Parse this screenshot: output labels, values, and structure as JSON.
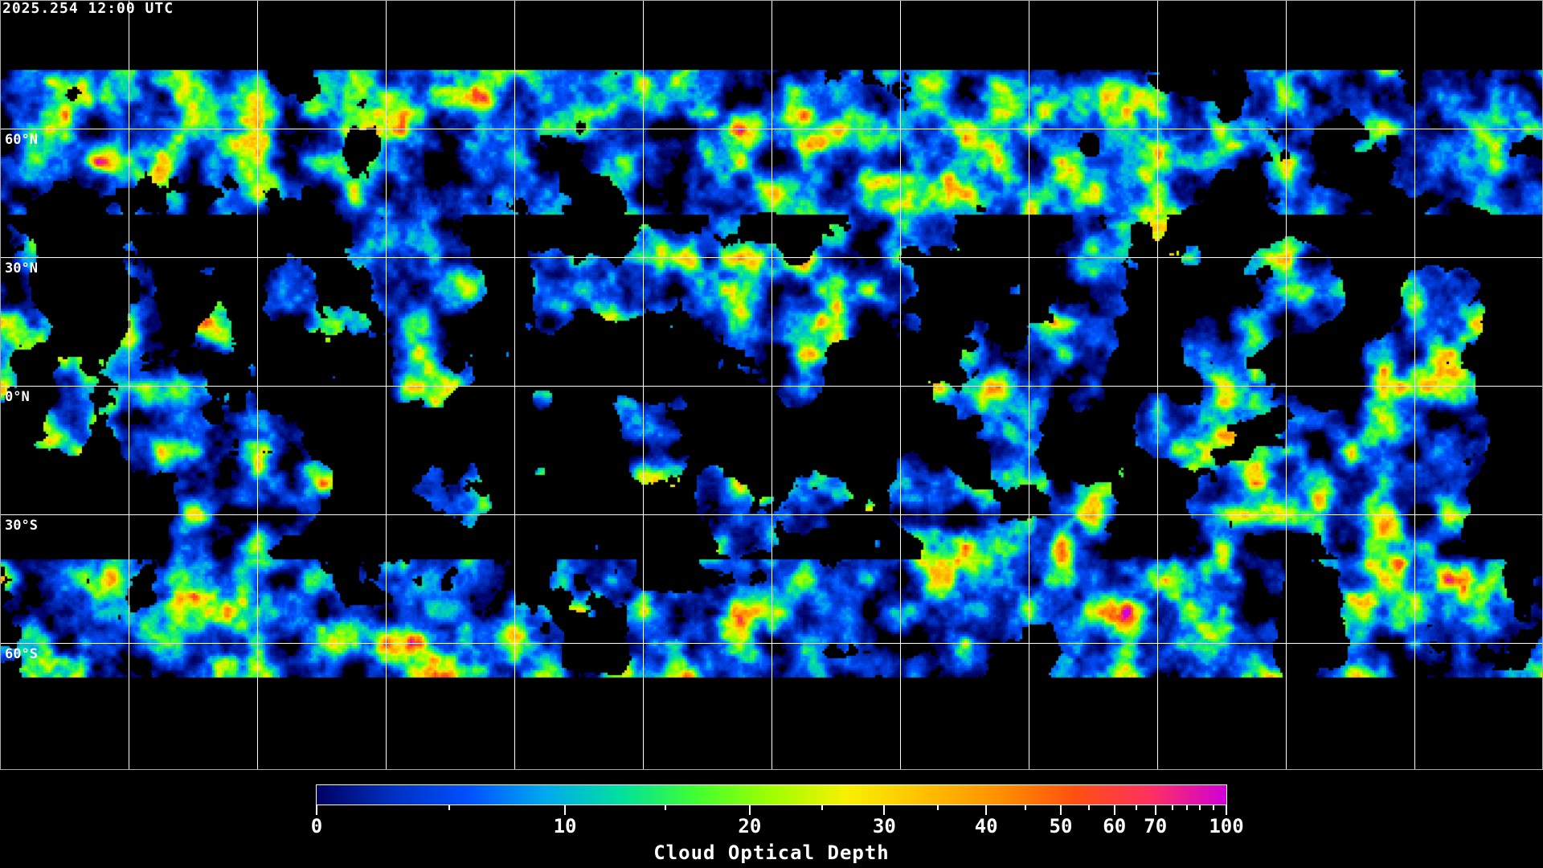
{
  "timestamp": "2025.254 12:00 UTC",
  "map": {
    "lat_labels": [
      {
        "label": "60°N",
        "lat": 60
      },
      {
        "label": "30°N",
        "lat": 30
      },
      {
        "label": "0°N",
        "lat": 0
      },
      {
        "label": "30°S",
        "lat": -30
      },
      {
        "label": "60°S",
        "lat": -60
      }
    ],
    "lon_grid_deg": [
      -150,
      -120,
      -90,
      -60,
      -30,
      0,
      30,
      60,
      90,
      120,
      150
    ],
    "projection": "equirectangular",
    "grid_color": "#ffffff",
    "background_color": "#000000"
  },
  "colorbar": {
    "title": "Cloud Optical Depth",
    "range": [
      0,
      100
    ],
    "ticks": [
      {
        "label": "0",
        "value": 0,
        "pos": 0.0
      },
      {
        "label": "10",
        "value": 10,
        "pos": 0.273
      },
      {
        "label": "20",
        "value": 20,
        "pos": 0.476
      },
      {
        "label": "30",
        "value": 30,
        "pos": 0.624
      },
      {
        "label": "40",
        "value": 40,
        "pos": 0.736
      },
      {
        "label": "50",
        "value": 50,
        "pos": 0.818
      },
      {
        "label": "60",
        "value": 60,
        "pos": 0.877
      },
      {
        "label": "70",
        "value": 70,
        "pos": 0.922
      },
      {
        "label": "100",
        "value": 100,
        "pos": 1.0
      }
    ],
    "minor_tick_pos": [
      0.146,
      0.383,
      0.556,
      0.683,
      0.779,
      0.849,
      0.901,
      0.941,
      0.957,
      0.971,
      0.986
    ],
    "colors": [
      "#000060",
      "#0030c0",
      "#0050ff",
      "#00a8f0",
      "#00e0a0",
      "#40ff30",
      "#a0ff00",
      "#f8f000",
      "#ffc000",
      "#ff9000",
      "#ff5010",
      "#ff3060",
      "#d000d8"
    ]
  }
}
